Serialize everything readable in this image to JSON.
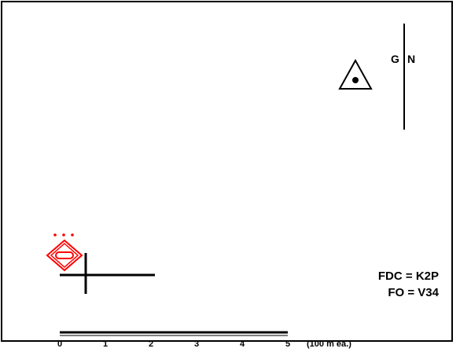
{
  "north_arrow": {
    "grid_label": "G",
    "north_label": "N"
  },
  "unit_note": "(100 m ea.)",
  "info": {
    "fdc": "FDC = K2P",
    "fo": "FO = V34"
  },
  "scale": {
    "ticks": [
      "0",
      "1",
      "2",
      "3",
      "4",
      "5"
    ],
    "units": "(100 m ea.)"
  },
  "colors": {
    "friendly_symbol": "#ff0000",
    "line": "#000000",
    "background": "#ffffff"
  },
  "icons": {
    "observation_post": "triangle-dot-icon",
    "unit_symbol": "red-diamond-unit-icon",
    "target": "target-cross-icon"
  }
}
